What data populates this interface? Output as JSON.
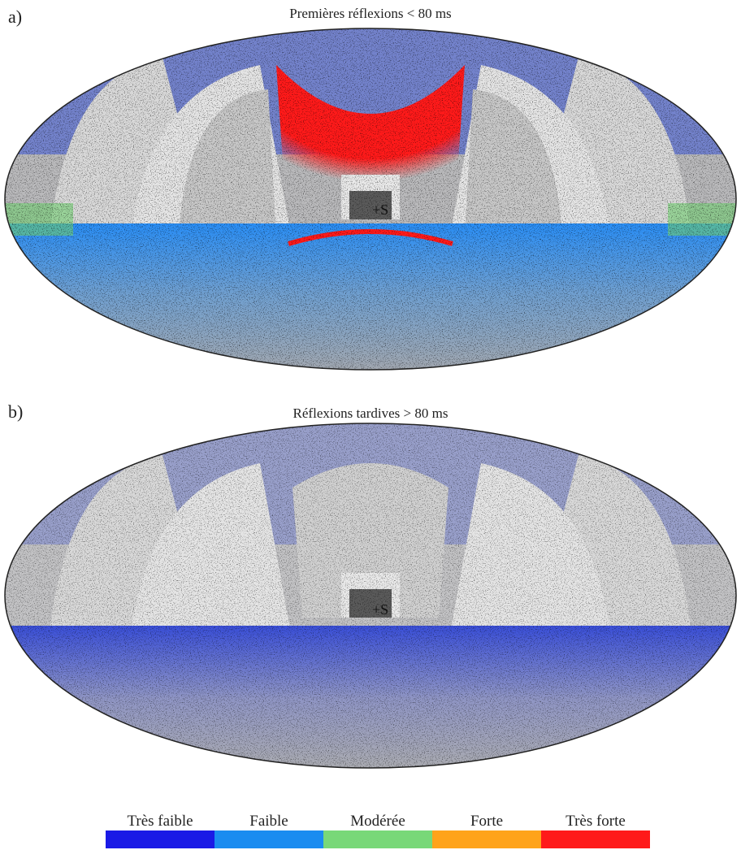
{
  "panels": [
    {
      "label": "a)",
      "title": "Premières réflexions < 80 ms",
      "source_label": "+S"
    },
    {
      "label": "b)",
      "title": "Réflexions tardives > 80 ms",
      "source_label": "+S"
    }
  ],
  "legend": {
    "items": [
      {
        "label": "Très faible",
        "color": "#1a1ae6"
      },
      {
        "label": "Faible",
        "color": "#1a8cf0"
      },
      {
        "label": "Modérée",
        "color": "#78d878"
      },
      {
        "label": "Forte",
        "color": "#ffa31a"
      },
      {
        "label": "Très forte",
        "color": "#ff1a1a"
      }
    ]
  }
}
